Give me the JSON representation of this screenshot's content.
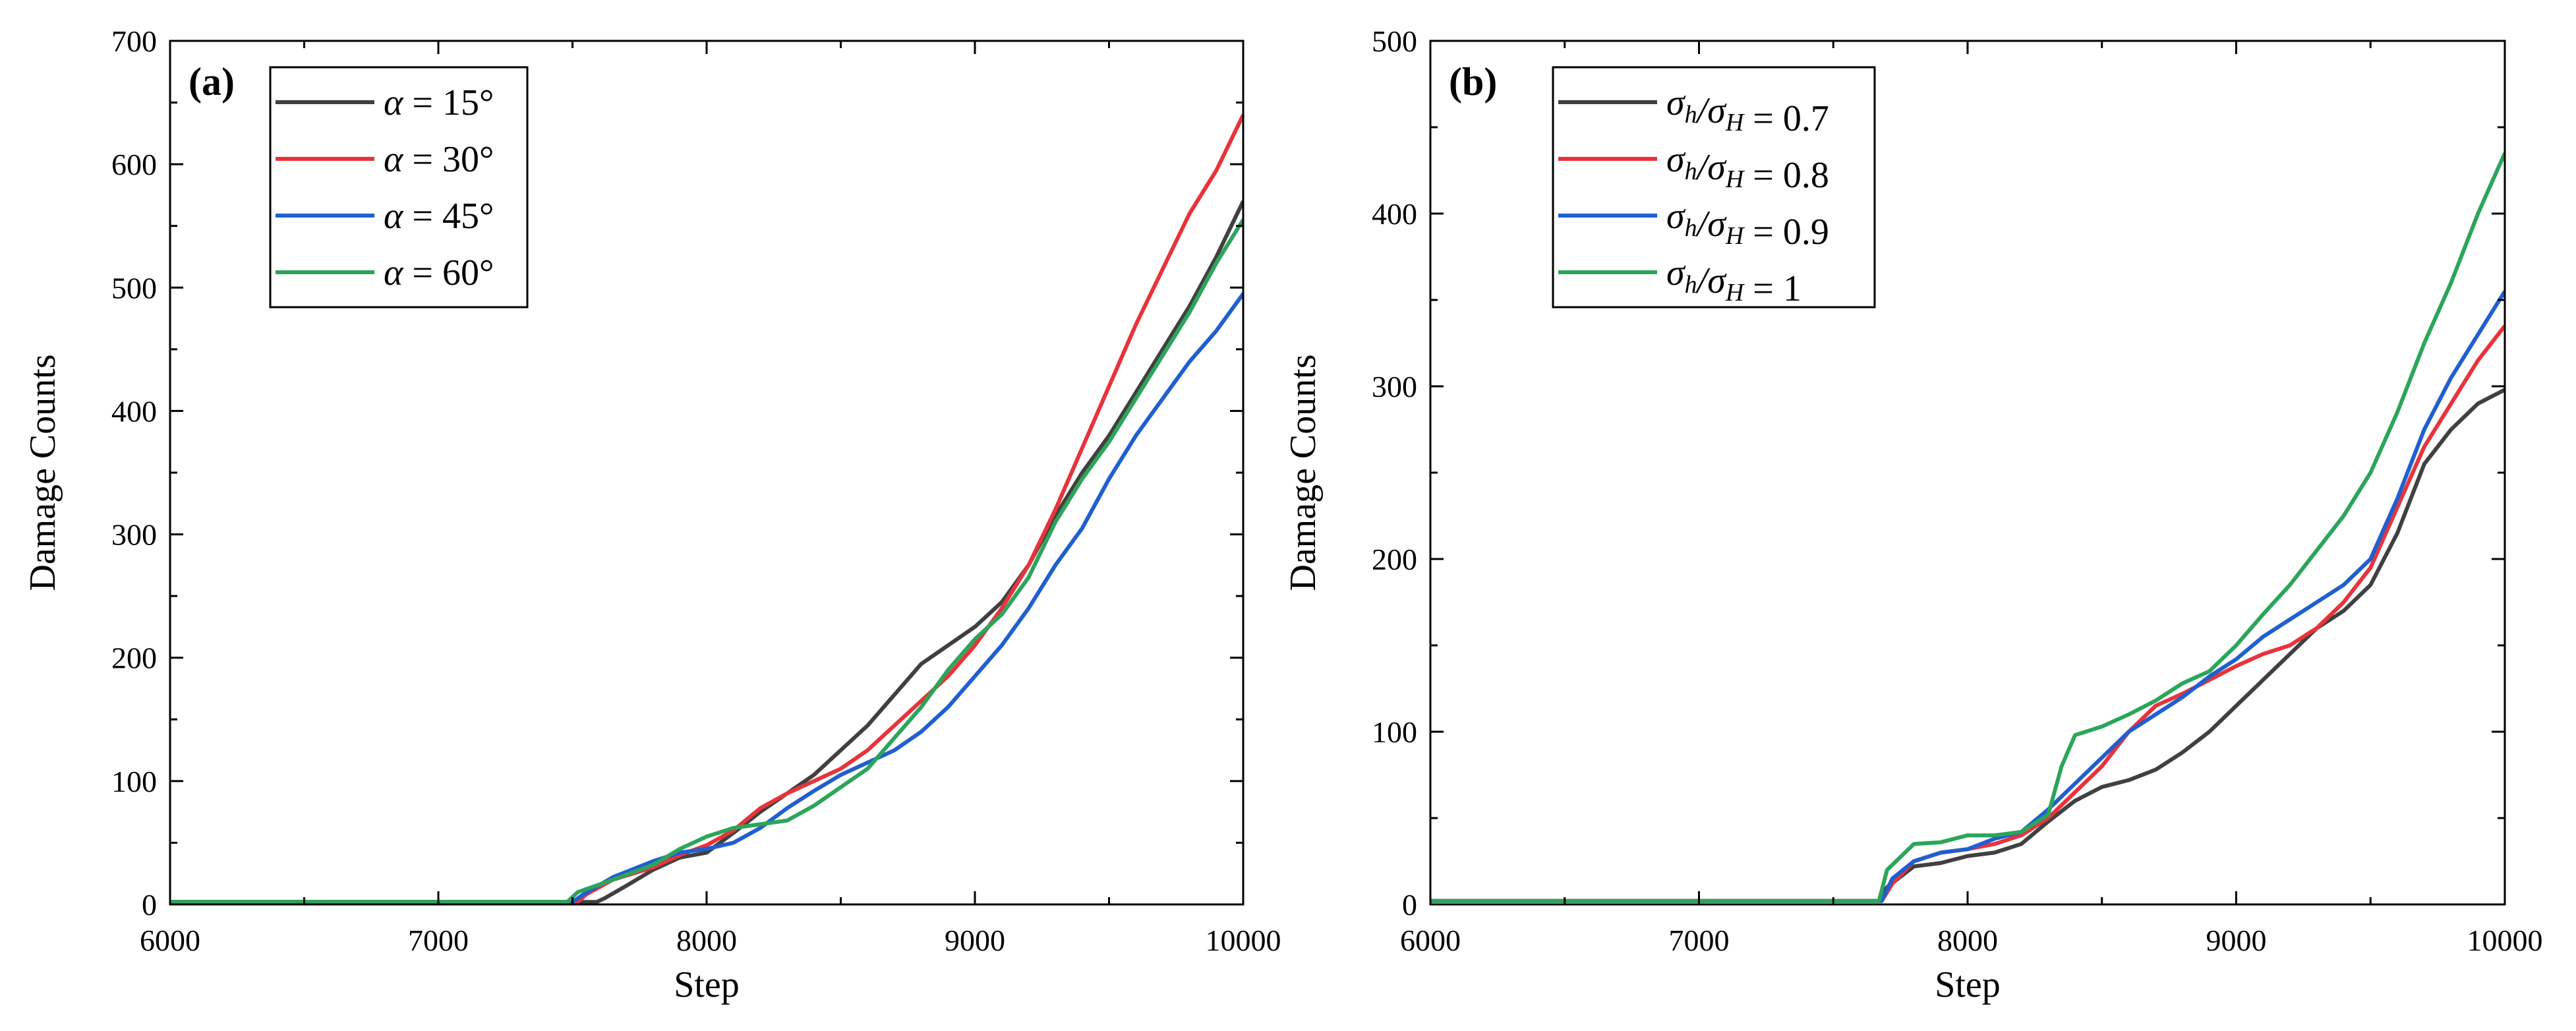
{
  "chart_data": [
    {
      "type": "line",
      "panel_label": "(a)",
      "xlabel": "Step",
      "ylabel": "Damage Counts",
      "xlim": [
        6000,
        10000
      ],
      "ylim": [
        0,
        700
      ],
      "xticks": [
        "6000",
        "7000",
        "8000",
        "9000",
        "10000"
      ],
      "yticks": [
        "0",
        "100",
        "200",
        "300",
        "400",
        "500",
        "600",
        "700"
      ],
      "legend_position": "top-left",
      "series": [
        {
          "name": "α = 15°",
          "legend_var": "α",
          "legend_rest": " = 15°",
          "color": "#404040",
          "points": [
            [
              6000,
              2
            ],
            [
              7590,
              2
            ],
            [
              7620,
              5
            ],
            [
              7700,
              15
            ],
            [
              7800,
              28
            ],
            [
              7900,
              38
            ],
            [
              8000,
              42
            ],
            [
              8100,
              58
            ],
            [
              8200,
              75
            ],
            [
              8300,
              90
            ],
            [
              8400,
              105
            ],
            [
              8500,
              125
            ],
            [
              8600,
              145
            ],
            [
              8700,
              170
            ],
            [
              8800,
              195
            ],
            [
              8900,
              210
            ],
            [
              9000,
              225
            ],
            [
              9100,
              245
            ],
            [
              9200,
              275
            ],
            [
              9300,
              315
            ],
            [
              9400,
              350
            ],
            [
              9500,
              380
            ],
            [
              9600,
              415
            ],
            [
              9700,
              450
            ],
            [
              9800,
              485
            ],
            [
              9900,
              525
            ],
            [
              10000,
              570
            ]
          ]
        },
        {
          "name": "α = 30°",
          "legend_var": "α",
          "legend_rest": " = 30°",
          "color": "#e8333b",
          "points": [
            [
              6000,
              2
            ],
            [
              7520,
              2
            ],
            [
              7550,
              8
            ],
            [
              7650,
              20
            ],
            [
              7800,
              30
            ],
            [
              7900,
              40
            ],
            [
              8000,
              48
            ],
            [
              8100,
              60
            ],
            [
              8200,
              78
            ],
            [
              8300,
              90
            ],
            [
              8400,
              100
            ],
            [
              8500,
              110
            ],
            [
              8600,
              125
            ],
            [
              8700,
              145
            ],
            [
              8800,
              165
            ],
            [
              8900,
              185
            ],
            [
              9000,
              210
            ],
            [
              9100,
              240
            ],
            [
              9200,
              275
            ],
            [
              9300,
              320
            ],
            [
              9400,
              370
            ],
            [
              9500,
              420
            ],
            [
              9600,
              470
            ],
            [
              9700,
              515
            ],
            [
              9800,
              560
            ],
            [
              9900,
              595
            ],
            [
              10000,
              640
            ]
          ]
        },
        {
          "name": "α = 45°",
          "legend_var": "α",
          "legend_rest": " = 45°",
          "color": "#1f5fd0",
          "points": [
            [
              6000,
              2
            ],
            [
              7500,
              2
            ],
            [
              7540,
              8
            ],
            [
              7650,
              22
            ],
            [
              7800,
              35
            ],
            [
              7900,
              42
            ],
            [
              8000,
              45
            ],
            [
              8100,
              50
            ],
            [
              8200,
              62
            ],
            [
              8300,
              78
            ],
            [
              8400,
              92
            ],
            [
              8500,
              105
            ],
            [
              8600,
              115
            ],
            [
              8700,
              125
            ],
            [
              8800,
              140
            ],
            [
              8900,
              160
            ],
            [
              9000,
              185
            ],
            [
              9100,
              210
            ],
            [
              9200,
              240
            ],
            [
              9300,
              275
            ],
            [
              9400,
              305
            ],
            [
              9500,
              345
            ],
            [
              9600,
              380
            ],
            [
              9700,
              410
            ],
            [
              9800,
              440
            ],
            [
              9900,
              465
            ],
            [
              10000,
              495
            ]
          ]
        },
        {
          "name": "α = 60°",
          "legend_var": "α",
          "legend_rest": " = 60°",
          "color": "#2ca55b",
          "points": [
            [
              6000,
              2
            ],
            [
              7480,
              2
            ],
            [
              7520,
              10
            ],
            [
              7650,
              20
            ],
            [
              7800,
              32
            ],
            [
              7900,
              45
            ],
            [
              8000,
              55
            ],
            [
              8100,
              62
            ],
            [
              8200,
              65
            ],
            [
              8300,
              68
            ],
            [
              8400,
              80
            ],
            [
              8500,
              95
            ],
            [
              8600,
              110
            ],
            [
              8700,
              135
            ],
            [
              8800,
              160
            ],
            [
              8900,
              190
            ],
            [
              9000,
              215
            ],
            [
              9100,
              235
            ],
            [
              9200,
              265
            ],
            [
              9300,
              310
            ],
            [
              9400,
              345
            ],
            [
              9500,
              375
            ],
            [
              9600,
              410
            ],
            [
              9700,
              445
            ],
            [
              9800,
              480
            ],
            [
              9900,
              520
            ],
            [
              10000,
              555
            ]
          ]
        }
      ]
    },
    {
      "type": "line",
      "panel_label": "(b)",
      "xlabel": "Step",
      "ylabel": "Damage Counts",
      "xlim": [
        6000,
        10000
      ],
      "ylim": [
        0,
        500
      ],
      "xticks": [
        "6000",
        "7000",
        "8000",
        "9000",
        "10000"
      ],
      "yticks": [
        "0",
        "100",
        "200",
        "300",
        "400",
        "500"
      ],
      "legend_position": "top-left",
      "series": [
        {
          "name": "σh/σH = 0.7",
          "legend_var": "σh/σH",
          "legend_rest": " = 0.7",
          "color": "#404040",
          "points": [
            [
              6000,
              2
            ],
            [
              7670,
              2
            ],
            [
              7700,
              10
            ],
            [
              7800,
              22
            ],
            [
              7900,
              24
            ],
            [
              8000,
              28
            ],
            [
              8100,
              30
            ],
            [
              8200,
              35
            ],
            [
              8300,
              48
            ],
            [
              8400,
              60
            ],
            [
              8500,
              68
            ],
            [
              8600,
              72
            ],
            [
              8700,
              78
            ],
            [
              8800,
              88
            ],
            [
              8900,
              100
            ],
            [
              9000,
              115
            ],
            [
              9100,
              130
            ],
            [
              9200,
              145
            ],
            [
              9300,
              160
            ],
            [
              9400,
              170
            ],
            [
              9500,
              185
            ],
            [
              9600,
              215
            ],
            [
              9700,
              255
            ],
            [
              9800,
              275
            ],
            [
              9900,
              290
            ],
            [
              10000,
              298
            ]
          ]
        },
        {
          "name": "σh/σH = 0.8",
          "legend_var": "σh/σH",
          "legend_rest": " = 0.8",
          "color": "#e8333b",
          "points": [
            [
              6000,
              2
            ],
            [
              7680,
              2
            ],
            [
              7720,
              12
            ],
            [
              7800,
              25
            ],
            [
              7900,
              30
            ],
            [
              8000,
              32
            ],
            [
              8100,
              35
            ],
            [
              8200,
              40
            ],
            [
              8300,
              50
            ],
            [
              8400,
              65
            ],
            [
              8500,
              80
            ],
            [
              8600,
              100
            ],
            [
              8700,
              115
            ],
            [
              8800,
              122
            ],
            [
              8900,
              130
            ],
            [
              9000,
              138
            ],
            [
              9100,
              145
            ],
            [
              9200,
              150
            ],
            [
              9300,
              160
            ],
            [
              9400,
              175
            ],
            [
              9500,
              195
            ],
            [
              9600,
              230
            ],
            [
              9700,
              265
            ],
            [
              9800,
              290
            ],
            [
              9900,
              315
            ],
            [
              10000,
              335
            ]
          ]
        },
        {
          "name": "σh/σH = 0.9",
          "legend_var": "σh/σH",
          "legend_rest": " = 0.9",
          "color": "#1f5fd0",
          "points": [
            [
              6000,
              2
            ],
            [
              7680,
              2
            ],
            [
              7720,
              15
            ],
            [
              7800,
              25
            ],
            [
              7900,
              30
            ],
            [
              8000,
              32
            ],
            [
              8100,
              38
            ],
            [
              8200,
              42
            ],
            [
              8300,
              55
            ],
            [
              8400,
              70
            ],
            [
              8500,
              85
            ],
            [
              8600,
              100
            ],
            [
              8700,
              110
            ],
            [
              8800,
              120
            ],
            [
              8900,
              132
            ],
            [
              9000,
              142
            ],
            [
              9100,
              155
            ],
            [
              9200,
              165
            ],
            [
              9300,
              175
            ],
            [
              9400,
              185
            ],
            [
              9500,
              200
            ],
            [
              9600,
              235
            ],
            [
              9700,
              275
            ],
            [
              9800,
              305
            ],
            [
              9900,
              330
            ],
            [
              10000,
              355
            ]
          ]
        },
        {
          "name": "σh/σH = 1",
          "legend_var": "σh/σH",
          "legend_rest": " = 1",
          "color": "#2ca55b",
          "points": [
            [
              6000,
              2
            ],
            [
              7670,
              2
            ],
            [
              7700,
              20
            ],
            [
              7800,
              35
            ],
            [
              7900,
              36
            ],
            [
              8000,
              40
            ],
            [
              8100,
              40
            ],
            [
              8200,
              42
            ],
            [
              8300,
              52
            ],
            [
              8350,
              80
            ],
            [
              8400,
              98
            ],
            [
              8500,
              103
            ],
            [
              8600,
              110
            ],
            [
              8700,
              118
            ],
            [
              8800,
              128
            ],
            [
              8900,
              135
            ],
            [
              9000,
              150
            ],
            [
              9100,
              168
            ],
            [
              9200,
              185
            ],
            [
              9300,
              205
            ],
            [
              9400,
              225
            ],
            [
              9500,
              250
            ],
            [
              9600,
              285
            ],
            [
              9700,
              325
            ],
            [
              9800,
              360
            ],
            [
              9900,
              400
            ],
            [
              10000,
              435
            ]
          ]
        }
      ]
    }
  ]
}
